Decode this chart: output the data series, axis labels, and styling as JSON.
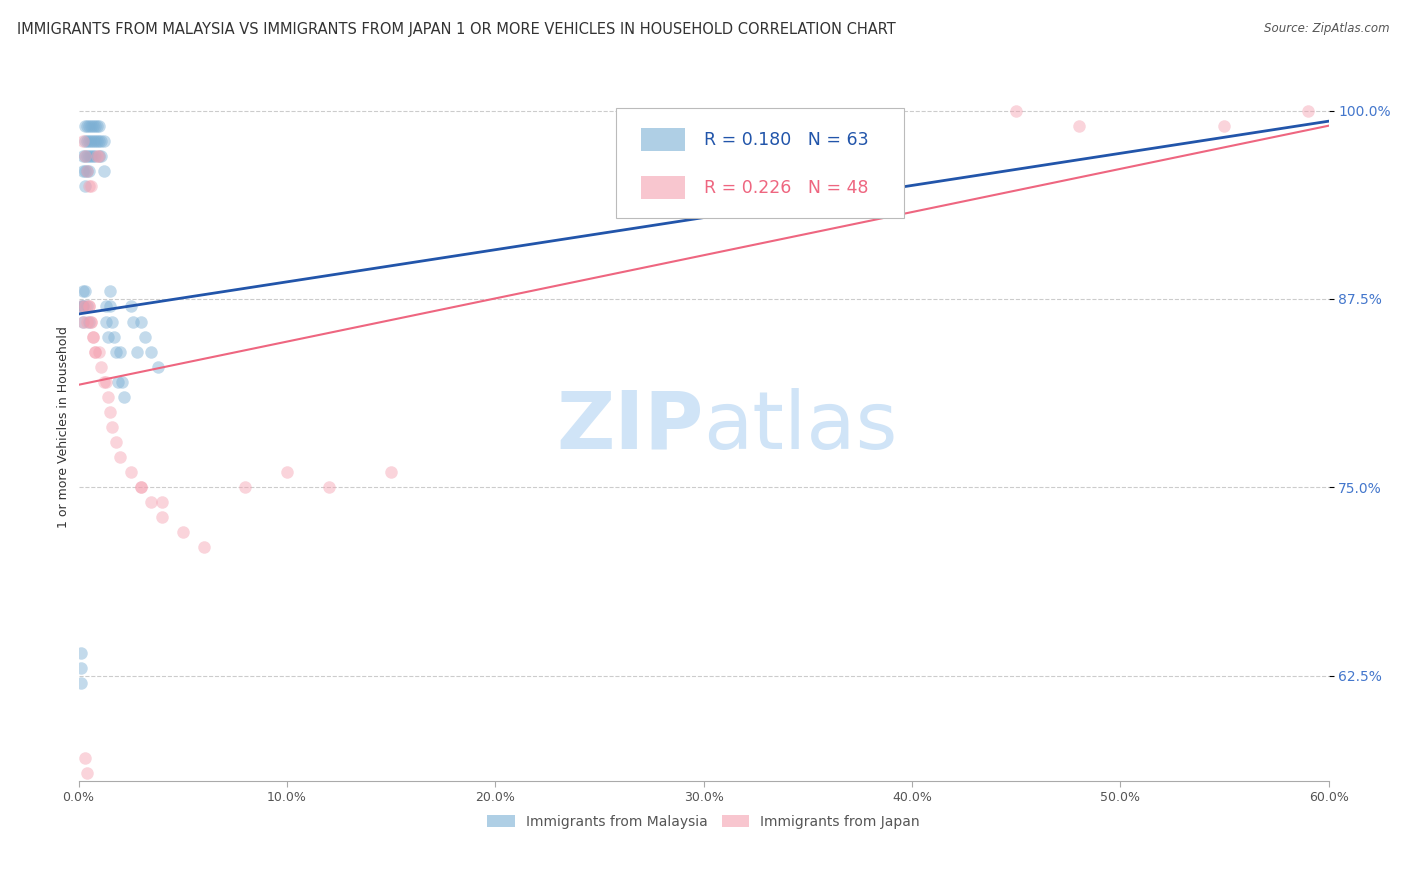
{
  "title": "IMMIGRANTS FROM MALAYSIA VS IMMIGRANTS FROM JAPAN 1 OR MORE VEHICLES IN HOUSEHOLD CORRELATION CHART",
  "source": "Source: ZipAtlas.com",
  "ylabel": "1 or more Vehicles in Household",
  "legend_malaysia": "Immigrants from Malaysia",
  "legend_japan": "Immigrants from Japan",
  "R_malaysia": 0.18,
  "N_malaysia": 63,
  "R_japan": 0.226,
  "N_japan": 48,
  "color_malaysia": "#7BAFD4",
  "color_japan": "#F4A0B0",
  "color_trendline_malaysia": "#2255AA",
  "color_trendline_japan": "#EE6680",
  "color_right_labels": "#4477CC",
  "color_watermark": "#D0E4F7",
  "xlim": [
    0.0,
    0.6
  ],
  "ylim": [
    0.555,
    1.025
  ],
  "yticks": [
    0.625,
    0.75,
    0.875,
    1.0
  ],
  "ytick_labels": [
    "62.5%",
    "75.0%",
    "87.5%",
    "100.0%"
  ],
  "xticks": [
    0.0,
    0.1,
    0.2,
    0.3,
    0.4,
    0.5,
    0.6
  ],
  "xtick_labels": [
    "0.0%",
    "10.0%",
    "20.0%",
    "30.0%",
    "40.0%",
    "50.0%",
    "60.0%"
  ],
  "malaysia_x": [
    0.001,
    0.001,
    0.001,
    0.002,
    0.002,
    0.002,
    0.002,
    0.002,
    0.003,
    0.003,
    0.003,
    0.003,
    0.003,
    0.004,
    0.004,
    0.004,
    0.004,
    0.005,
    0.005,
    0.005,
    0.005,
    0.006,
    0.006,
    0.006,
    0.007,
    0.007,
    0.007,
    0.008,
    0.008,
    0.008,
    0.009,
    0.009,
    0.01,
    0.01,
    0.01,
    0.011,
    0.011,
    0.012,
    0.012,
    0.013,
    0.013,
    0.014,
    0.015,
    0.015,
    0.016,
    0.017,
    0.018,
    0.019,
    0.02,
    0.021,
    0.022,
    0.025,
    0.026,
    0.028,
    0.03,
    0.032,
    0.035,
    0.038,
    0.001,
    0.002,
    0.003,
    0.004,
    0.005
  ],
  "malaysia_y": [
    0.63,
    0.62,
    0.64,
    0.88,
    0.87,
    0.86,
    0.96,
    0.97,
    0.99,
    0.98,
    0.97,
    0.96,
    0.95,
    0.99,
    0.98,
    0.97,
    0.96,
    0.99,
    0.98,
    0.97,
    0.96,
    0.99,
    0.98,
    0.97,
    0.99,
    0.98,
    0.97,
    0.99,
    0.98,
    0.97,
    0.99,
    0.98,
    0.99,
    0.98,
    0.97,
    0.98,
    0.97,
    0.98,
    0.96,
    0.87,
    0.86,
    0.85,
    0.88,
    0.87,
    0.86,
    0.85,
    0.84,
    0.82,
    0.84,
    0.82,
    0.81,
    0.87,
    0.86,
    0.84,
    0.86,
    0.85,
    0.84,
    0.83,
    0.87,
    0.87,
    0.88,
    0.87,
    0.86
  ],
  "japan_x": [
    0.001,
    0.002,
    0.002,
    0.003,
    0.003,
    0.004,
    0.004,
    0.005,
    0.005,
    0.006,
    0.006,
    0.007,
    0.008,
    0.009,
    0.01,
    0.01,
    0.011,
    0.012,
    0.013,
    0.014,
    0.015,
    0.016,
    0.018,
    0.02,
    0.025,
    0.03,
    0.035,
    0.04,
    0.05,
    0.06,
    0.08,
    0.1,
    0.12,
    0.15,
    0.003,
    0.004,
    0.005,
    0.006,
    0.007,
    0.008,
    0.03,
    0.04,
    0.28,
    0.3,
    0.45,
    0.48,
    0.55,
    0.59
  ],
  "japan_y": [
    0.87,
    0.86,
    0.98,
    0.87,
    0.97,
    0.86,
    0.96,
    0.87,
    0.95,
    0.86,
    0.95,
    0.85,
    0.84,
    0.97,
    0.84,
    0.97,
    0.83,
    0.82,
    0.82,
    0.81,
    0.8,
    0.79,
    0.78,
    0.77,
    0.76,
    0.75,
    0.74,
    0.73,
    0.72,
    0.71,
    0.75,
    0.76,
    0.75,
    0.76,
    0.57,
    0.56,
    0.87,
    0.86,
    0.85,
    0.84,
    0.75,
    0.74,
    0.96,
    0.98,
    1.0,
    0.99,
    0.99,
    1.0
  ],
  "mal_trend": [
    0.865,
    0.993
  ],
  "jap_trend": [
    0.818,
    0.99
  ],
  "background_color": "#FFFFFF",
  "grid_color": "#CCCCCC",
  "marker_size": 9,
  "marker_alpha": 0.45,
  "title_fontsize": 10.5,
  "tick_fontsize": 9,
  "watermark_zip": "ZIP",
  "watermark_atlas": "atlas",
  "watermark_fontsize": 58
}
